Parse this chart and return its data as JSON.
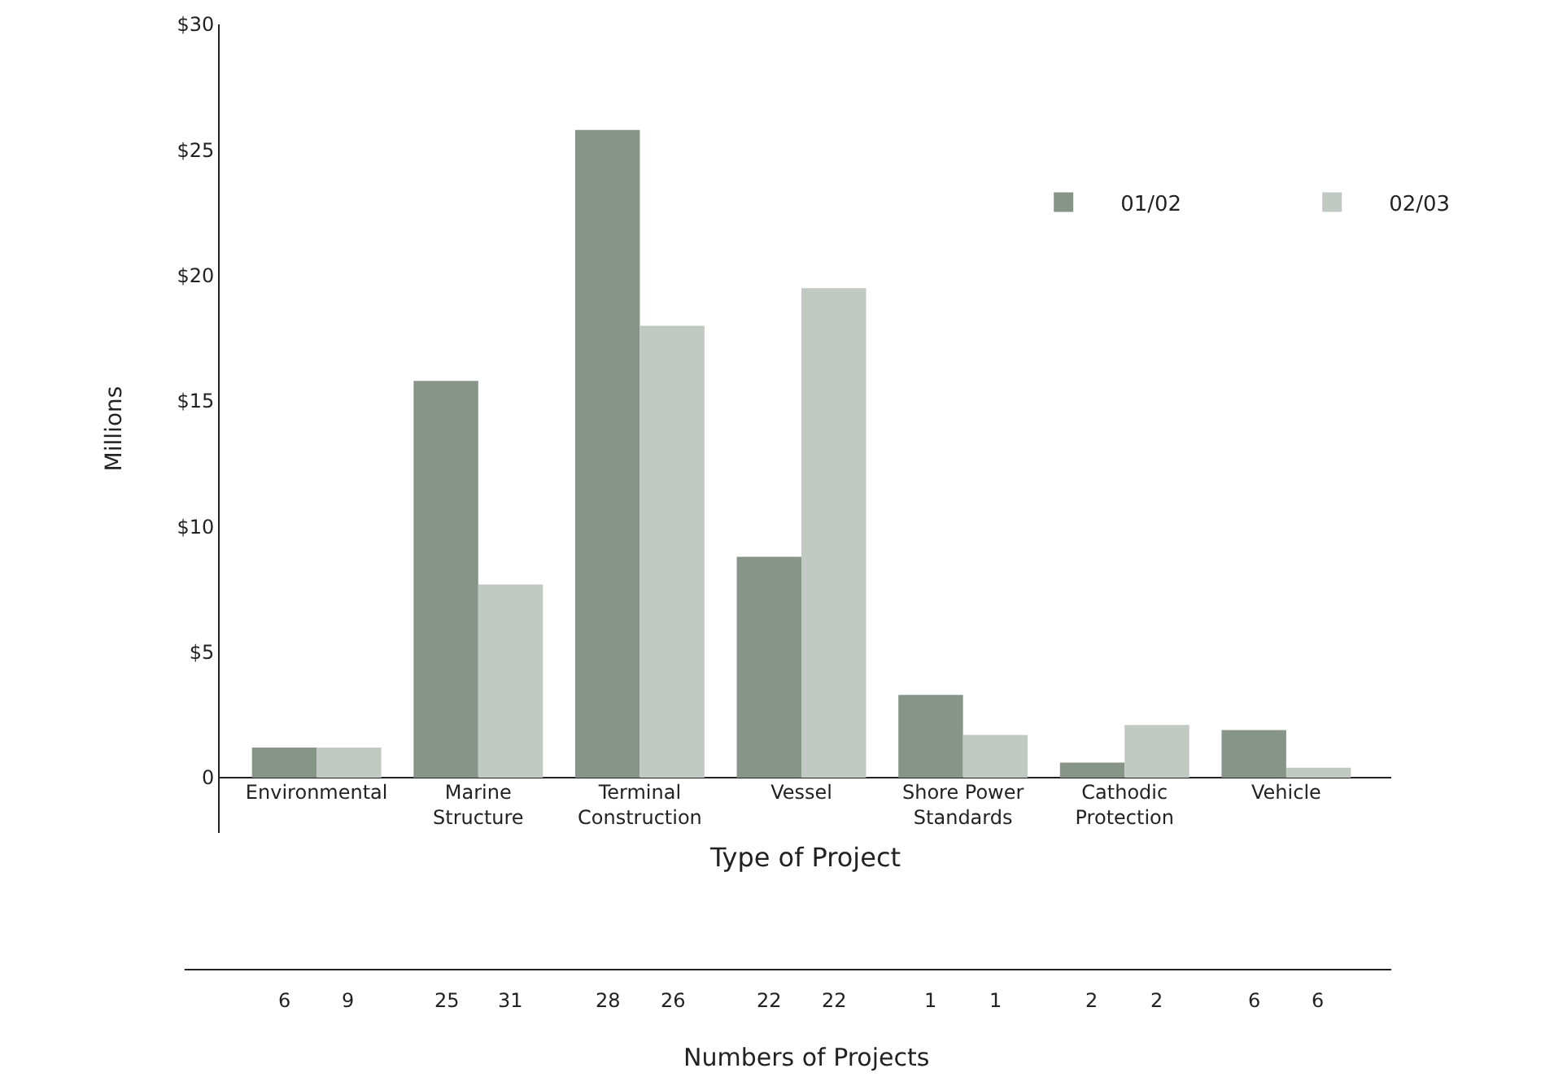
{
  "chart_data": {
    "type": "bar",
    "xlabel": "Type of Project",
    "ylabel": "Millions",
    "categories": [
      "Environmental",
      "Marine Structure",
      "Terminal Construction",
      "Vessel",
      "Shore Power Standards",
      "Cathodic Protection",
      "Vehicle"
    ],
    "series": [
      {
        "name": "01/02",
        "color": "#879488",
        "values": [
          1.2,
          15.8,
          25.8,
          8.8,
          3.3,
          0.6,
          1.9
        ]
      },
      {
        "name": "02/03",
        "color": "#c1c9c3",
        "values": [
          1.2,
          7.7,
          18.0,
          19.5,
          1.7,
          2.1,
          0.4
        ]
      }
    ],
    "ylim": [
      -2.2,
      30
    ],
    "yticks": [
      {
        "value": 0,
        "label": "0"
      },
      {
        "value": 5,
        "label": "$5"
      },
      {
        "value": 10,
        "label": "$10"
      },
      {
        "value": 15,
        "label": "$15"
      },
      {
        "value": 20,
        "label": "$20"
      },
      {
        "value": 25,
        "label": "$25"
      },
      {
        "value": 30,
        "label": "$30"
      }
    ],
    "grid": false,
    "legend": "top right",
    "annotations": [
      "6",
      "9",
      "25",
      "31",
      "28",
      "26",
      "22",
      "22",
      "1",
      "1",
      "2",
      "2",
      "6",
      "6",
      "Numbers of Projects"
    ]
  }
}
